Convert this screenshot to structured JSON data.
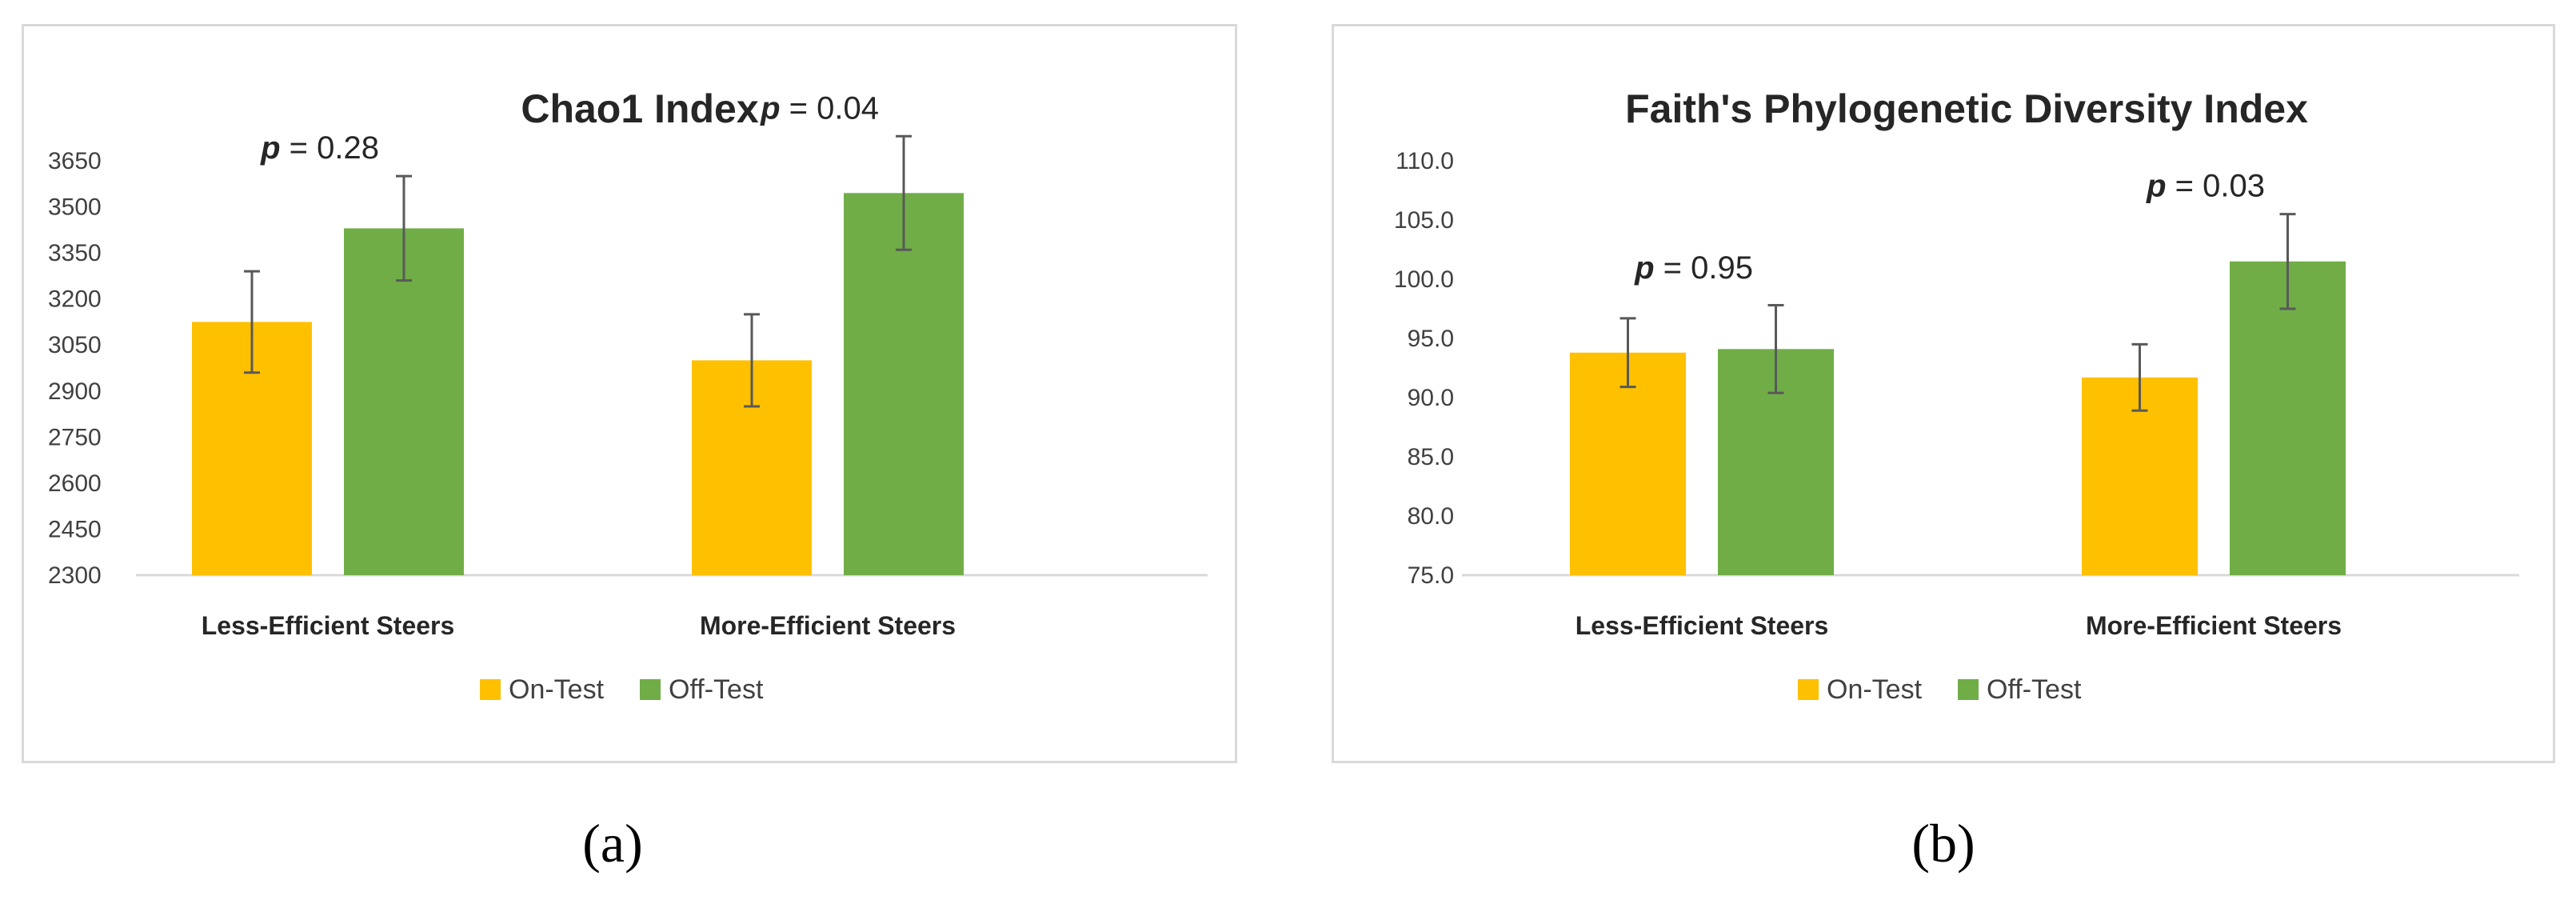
{
  "panels": [
    {
      "label": "(a)",
      "chart_data": {
        "type": "bar",
        "title": "Chao1 Index",
        "categories": [
          "Less-Efficient Steers",
          "More-Efficient Steers"
        ],
        "series": [
          {
            "name": "On-Test",
            "color": "#FFC000",
            "values": [
              3125,
              3000
            ],
            "errors": [
              165,
              150
            ]
          },
          {
            "name": "Off-Test",
            "color": "#70AD47",
            "values": [
              3430,
              3545
            ],
            "errors": [
              170,
              185
            ]
          }
        ],
        "ylim": [
          2300,
          3650
        ],
        "yticks": [
          2300,
          2450,
          2600,
          2750,
          2900,
          3050,
          3200,
          3350,
          3500,
          3650
        ],
        "tick_decimals": 0,
        "annotations": [
          {
            "category": 0,
            "prefix": "p",
            "text": " = 0.28"
          },
          {
            "category": 1,
            "prefix": "p",
            "text": " = 0.04"
          }
        ],
        "legend": "bottom",
        "xlabel": "",
        "ylabel": ""
      }
    },
    {
      "label": "(b)",
      "chart_data": {
        "type": "bar",
        "title": "Faith's Phylogenetic Diversity Index",
        "categories": [
          "Less-Efficient Steers",
          "More-Efficient Steers"
        ],
        "series": [
          {
            "name": "On-Test",
            "color": "#FFC000",
            "values": [
              93.8,
              91.7
            ],
            "errors": [
              2.9,
              2.8
            ]
          },
          {
            "name": "Off-Test",
            "color": "#70AD47",
            "values": [
              94.1,
              101.5
            ],
            "errors": [
              3.7,
              4.0
            ]
          }
        ],
        "ylim": [
          75,
          110
        ],
        "yticks": [
          75,
          80,
          85,
          90,
          95,
          100,
          105,
          110
        ],
        "tick_decimals": 1,
        "annotations": [
          {
            "category": 0,
            "prefix": "p",
            "text": " = 0.95"
          },
          {
            "category": 1,
            "prefix": "p",
            "text": " = 0.03"
          }
        ],
        "legend": "bottom",
        "xlabel": "",
        "ylabel": ""
      }
    }
  ]
}
